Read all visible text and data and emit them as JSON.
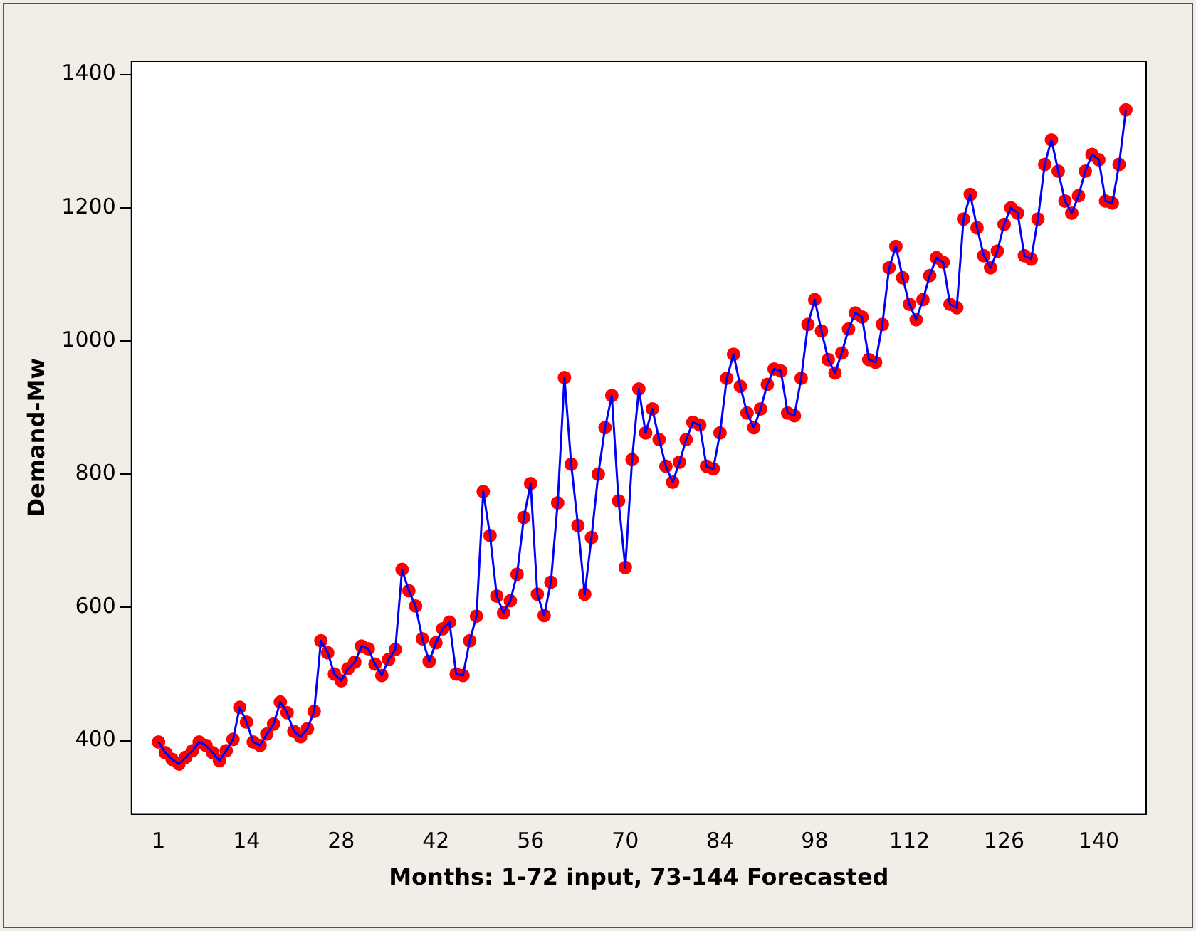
{
  "chart_data": {
    "type": "line",
    "xlabel": "Months: 1-72 input, 73-144 Forecasted",
    "ylabel": "Demand-Mw",
    "x": [
      1,
      2,
      3,
      4,
      5,
      6,
      7,
      8,
      9,
      10,
      11,
      12,
      13,
      14,
      15,
      16,
      17,
      18,
      19,
      20,
      21,
      22,
      23,
      24,
      25,
      26,
      27,
      28,
      29,
      30,
      31,
      32,
      33,
      34,
      35,
      36,
      37,
      38,
      39,
      40,
      41,
      42,
      43,
      44,
      45,
      46,
      47,
      48,
      49,
      50,
      51,
      52,
      53,
      54,
      55,
      56,
      57,
      58,
      59,
      60,
      61,
      62,
      63,
      64,
      65,
      66,
      67,
      68,
      69,
      70,
      71,
      72,
      73,
      74,
      75,
      76,
      77,
      78,
      79,
      80,
      81,
      82,
      83,
      84,
      85,
      86,
      87,
      88,
      89,
      90,
      91,
      92,
      93,
      94,
      95,
      96,
      97,
      98,
      99,
      100,
      101,
      102,
      103,
      104,
      105,
      106,
      107,
      108,
      109,
      110,
      111,
      112,
      113,
      114,
      115,
      116,
      117,
      118,
      119,
      120,
      121,
      122,
      123,
      124,
      125,
      126,
      127,
      128,
      129,
      130,
      131,
      132,
      133,
      134,
      135,
      136,
      137,
      138,
      139,
      140,
      141,
      142,
      143,
      144
    ],
    "series": [
      {
        "type": "scatter",
        "color": "#ff0000",
        "values": [
          398,
          382,
          372,
          365,
          375,
          385,
          398,
          393,
          382,
          370,
          385,
          402,
          450,
          428,
          398,
          393,
          410,
          425,
          458,
          442,
          414,
          406,
          418,
          444,
          550,
          532,
          500,
          490,
          508,
          518,
          542,
          538,
          515,
          498,
          522,
          537,
          657,
          625,
          602,
          553,
          519,
          547,
          568,
          578,
          500,
          498,
          550,
          587,
          774,
          708,
          617,
          592,
          610,
          650,
          735,
          786,
          620,
          588,
          638,
          757,
          945,
          815,
          723,
          620,
          705,
          800,
          870,
          918,
          760,
          660,
          822,
          928,
          862,
          898,
          852,
          812,
          788,
          818,
          852,
          878,
          874,
          812,
          808,
          862,
          944,
          980,
          932,
          892,
          870,
          898,
          935,
          958,
          955,
          892,
          888,
          944,
          1025,
          1062,
          1015,
          972,
          952,
          982,
          1018,
          1042,
          1036,
          972,
          968,
          1025,
          1110,
          1142,
          1095,
          1055,
          1032,
          1062,
          1098,
          1125,
          1118,
          1055,
          1050,
          1183,
          1220,
          1170,
          1128,
          1110,
          1135,
          1175,
          1200,
          1192,
          1128,
          1123,
          1183,
          1265,
          1302,
          1255,
          1210,
          1192,
          1218,
          1255,
          1280,
          1272,
          1210,
          1207,
          1265,
          1347
        ]
      },
      {
        "marker": "none",
        "color": "#0000ff",
        "values": [
          398,
          382,
          372,
          365,
          375,
          385,
          398,
          393,
          382,
          370,
          385,
          402,
          450,
          428,
          398,
          393,
          410,
          425,
          458,
          442,
          414,
          406,
          418,
          444,
          550,
          532,
          500,
          490,
          508,
          518,
          542,
          538,
          515,
          498,
          522,
          537,
          657,
          625,
          602,
          553,
          519,
          547,
          568,
          578,
          500,
          498,
          550,
          587,
          774,
          708,
          617,
          592,
          610,
          650,
          735,
          786,
          620,
          588,
          638,
          757,
          945,
          815,
          723,
          620,
          705,
          800,
          870,
          918,
          760,
          660,
          822,
          928,
          862,
          898,
          852,
          812,
          788,
          818,
          852,
          878,
          874,
          812,
          808,
          862,
          944,
          980,
          932,
          892,
          870,
          898,
          935,
          958,
          955,
          892,
          888,
          944,
          1025,
          1062,
          1015,
          972,
          952,
          982,
          1018,
          1042,
          1036,
          972,
          968,
          1025,
          1110,
          1142,
          1095,
          1055,
          1032,
          1062,
          1098,
          1125,
          1118,
          1055,
          1050,
          1183,
          1220,
          1170,
          1128,
          1110,
          1135,
          1175,
          1200,
          1192,
          1128,
          1123,
          1183,
          1265,
          1302,
          1255,
          1210,
          1192,
          1218,
          1255,
          1280,
          1272,
          1210,
          1207,
          1265,
          1347
        ]
      }
    ],
    "xlim": [
      -3,
      147
    ],
    "xticks": [
      1,
      14,
      28,
      42,
      56,
      70,
      84,
      98,
      112,
      126,
      140
    ],
    "ylim": [
      290,
      1420
    ],
    "yticks": [
      400,
      600,
      800,
      1000,
      1200,
      1400
    ],
    "grid": false,
    "legend": false,
    "marker": "circle",
    "line_style": "solid"
  }
}
